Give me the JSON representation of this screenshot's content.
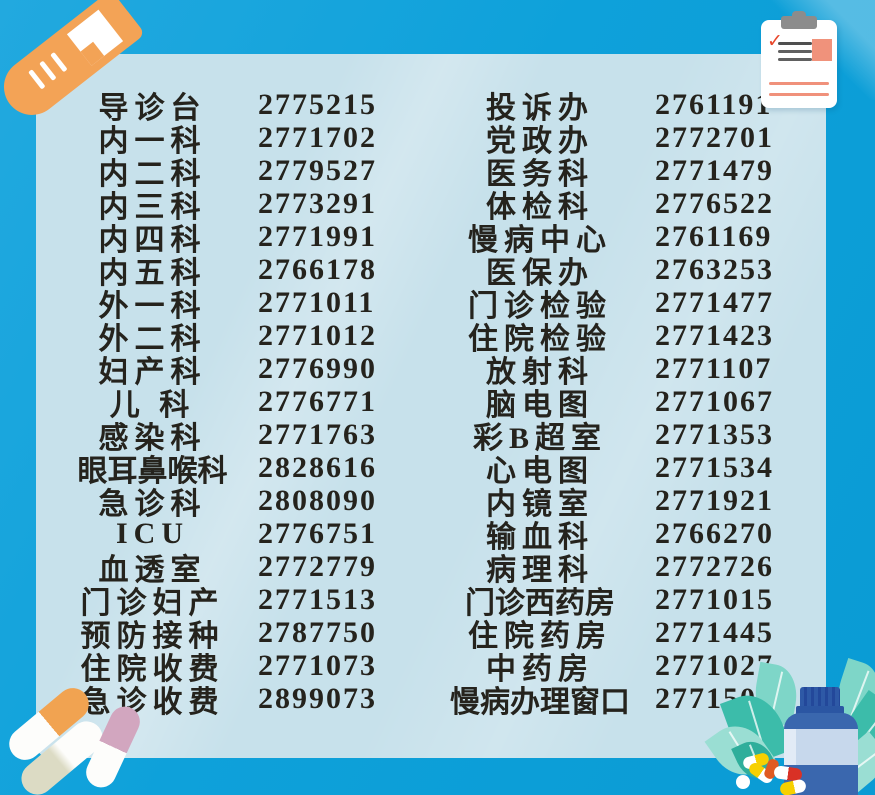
{
  "meta": {
    "description": "Hospital department telephone directory poster"
  },
  "theme": {
    "background_blue": "#0EA1DA",
    "panel_blue": "#C7E1EB",
    "text_color": "#25231D",
    "tube_orange": "#F3A356",
    "clipboard_salmon": "#F0917B",
    "clipboard_gray": "#8C8C8C",
    "bottle_blue": "#3A67AE",
    "leaf_teal": "#3CBCAA"
  },
  "decorations": {
    "top_left_icon": "test-tube-icon",
    "top_right_icon": "clipboard-checklist-icon",
    "bottom_left_icon": "capsule-pills-icon",
    "bottom_right_icon": "medicine-bottle-leaves-pills-icon"
  },
  "directory": {
    "left_column": [
      {
        "name": "导诊台",
        "phone": "2775215"
      },
      {
        "name": "内一科",
        "phone": "2771702"
      },
      {
        "name": "内二科",
        "phone": "2779527"
      },
      {
        "name": "内三科",
        "phone": "2773291"
      },
      {
        "name": "内四科",
        "phone": "2771991"
      },
      {
        "name": "内五科",
        "phone": "2766178"
      },
      {
        "name": "外一科",
        "phone": "2771011"
      },
      {
        "name": "外二科",
        "phone": "2771012"
      },
      {
        "name": "妇产科",
        "phone": "2776990"
      },
      {
        "name": "儿 科",
        "phone": "2776771"
      },
      {
        "name": "感染科",
        "phone": "2771763"
      },
      {
        "name": "眼耳鼻喉科",
        "phone": "2828616"
      },
      {
        "name": "急诊科",
        "phone": "2808090"
      },
      {
        "name": "ICU",
        "phone": "2776751"
      },
      {
        "name": "血透室",
        "phone": "2772779"
      },
      {
        "name": "门诊妇产",
        "phone": "2771513"
      },
      {
        "name": "预防接种",
        "phone": "2787750"
      },
      {
        "name": "住院收费",
        "phone": "2771073"
      },
      {
        "name": "急诊收费",
        "phone": "2899073"
      }
    ],
    "right_column": [
      {
        "name": "投诉办",
        "phone": "2761191"
      },
      {
        "name": "党政办",
        "phone": "2772701"
      },
      {
        "name": "医务科",
        "phone": "2771479"
      },
      {
        "name": "体检科",
        "phone": "2776522"
      },
      {
        "name": "慢病中心",
        "phone": "2761169"
      },
      {
        "name": "医保办",
        "phone": "2763253"
      },
      {
        "name": "门诊检验",
        "phone": "2771477"
      },
      {
        "name": "住院检验",
        "phone": "2771423"
      },
      {
        "name": "放射科",
        "phone": "2771107"
      },
      {
        "name": "脑电图",
        "phone": "2771067"
      },
      {
        "name": "彩B超室",
        "phone": "2771353"
      },
      {
        "name": "心电图",
        "phone": "2771534"
      },
      {
        "name": "内镜室",
        "phone": "2771921"
      },
      {
        "name": "输血科",
        "phone": "2766270"
      },
      {
        "name": "病理科",
        "phone": "2772726"
      },
      {
        "name": "门诊西药房",
        "phone": "2771015"
      },
      {
        "name": "住院药房",
        "phone": "2771445"
      },
      {
        "name": "中药房",
        "phone": "2771027"
      },
      {
        "name": "慢病办理窗口",
        "phone": "2771501"
      }
    ]
  }
}
